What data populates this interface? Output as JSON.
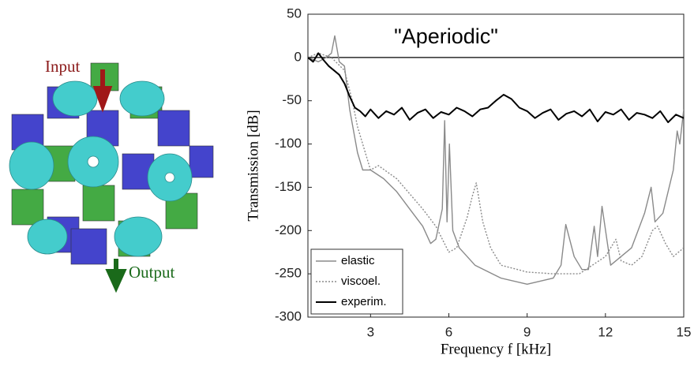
{
  "chart_data": {
    "type": "line",
    "title": "\"Aperiodic\"",
    "xlabel": "Frequency f [kHz]",
    "ylabel": "Transmission [dB]",
    "xlim": [
      0.6,
      15
    ],
    "xticks": [
      3,
      6,
      9,
      12,
      15
    ],
    "ylim": [
      -300,
      50
    ],
    "yticks": [
      -300,
      -250,
      -200,
      -150,
      -100,
      -50,
      0,
      50
    ],
    "reference_line": 0,
    "legend": "lower-left",
    "series": [
      {
        "name": "elastic",
        "color": "#8a8a8a",
        "style": "solid",
        "x": [
          0.6,
          1.0,
          1.3,
          1.5,
          1.63,
          1.8,
          2.0,
          2.2,
          2.5,
          2.7,
          3.0,
          3.5,
          4.0,
          4.5,
          5.0,
          5.3,
          5.5,
          5.75,
          5.84,
          5.93,
          6.02,
          6.15,
          6.4,
          7.0,
          8.0,
          9.0,
          10.0,
          10.3,
          10.48,
          10.8,
          11.1,
          11.35,
          11.57,
          11.7,
          11.87,
          12.2,
          13.0,
          13.5,
          13.75,
          13.9,
          14.2,
          14.6,
          14.75,
          14.85,
          15.0
        ],
        "values": [
          0,
          -5,
          0,
          5,
          25,
          -5,
          -10,
          -60,
          -110,
          -130,
          -130,
          -140,
          -155,
          -175,
          -195,
          -215,
          -210,
          -175,
          -73,
          -190,
          -100,
          -200,
          -220,
          -240,
          -255,
          -262,
          -255,
          -240,
          -193,
          -230,
          -245,
          -245,
          -195,
          -230,
          -172,
          -240,
          -220,
          -180,
          -150,
          -190,
          -180,
          -130,
          -85,
          -100,
          -60
        ]
      },
      {
        "name": "viscoel.",
        "color": "#8a8a8a",
        "style": "dotted",
        "x": [
          0.6,
          1.0,
          1.5,
          2.0,
          2.3,
          2.5,
          2.8,
          3.0,
          3.3,
          4.0,
          5.0,
          5.5,
          6.0,
          6.3,
          6.7,
          6.9,
          7.05,
          7.3,
          7.6,
          8.0,
          9.0,
          10.0,
          11.0,
          11.5,
          12.0,
          12.4,
          12.6,
          13.0,
          13.4,
          13.6,
          13.8,
          14.0,
          14.3,
          14.6,
          15.0
        ],
        "values": [
          0,
          5,
          0,
          -15,
          -50,
          -80,
          -110,
          -130,
          -125,
          -140,
          -175,
          -195,
          -225,
          -220,
          -185,
          -160,
          -145,
          -190,
          -220,
          -240,
          -248,
          -250,
          -250,
          -240,
          -230,
          -210,
          -235,
          -240,
          -230,
          -215,
          -200,
          -195,
          -215,
          -230,
          -220
        ]
      },
      {
        "name": "experim.",
        "color": "#000000",
        "style": "solid",
        "x": [
          0.6,
          0.8,
          1.0,
          1.2,
          1.4,
          1.6,
          1.8,
          2.0,
          2.2,
          2.4,
          2.6,
          2.8,
          3.0,
          3.3,
          3.6,
          3.9,
          4.2,
          4.5,
          4.8,
          5.1,
          5.4,
          5.7,
          6.0,
          6.3,
          6.6,
          6.9,
          7.2,
          7.5,
          7.8,
          8.1,
          8.4,
          8.7,
          9.0,
          9.3,
          9.6,
          9.9,
          10.2,
          10.5,
          10.8,
          11.1,
          11.4,
          11.7,
          12.0,
          12.3,
          12.6,
          12.9,
          13.2,
          13.5,
          13.8,
          14.1,
          14.4,
          14.7,
          15.0
        ],
        "values": [
          0,
          -5,
          5,
          -3,
          -10,
          -15,
          -20,
          -30,
          -45,
          -58,
          -62,
          -68,
          -60,
          -70,
          -62,
          -66,
          -58,
          -72,
          -64,
          -60,
          -70,
          -63,
          -66,
          -58,
          -62,
          -68,
          -60,
          -58,
          -50,
          -43,
          -48,
          -58,
          -62,
          -70,
          -64,
          -60,
          -72,
          -65,
          -62,
          -68,
          -60,
          -74,
          -63,
          -66,
          -60,
          -72,
          -64,
          -66,
          -70,
          -62,
          -75,
          -66,
          -70
        ]
      }
    ]
  },
  "illustration": {
    "input_label": "Input",
    "output_label": "Output"
  }
}
